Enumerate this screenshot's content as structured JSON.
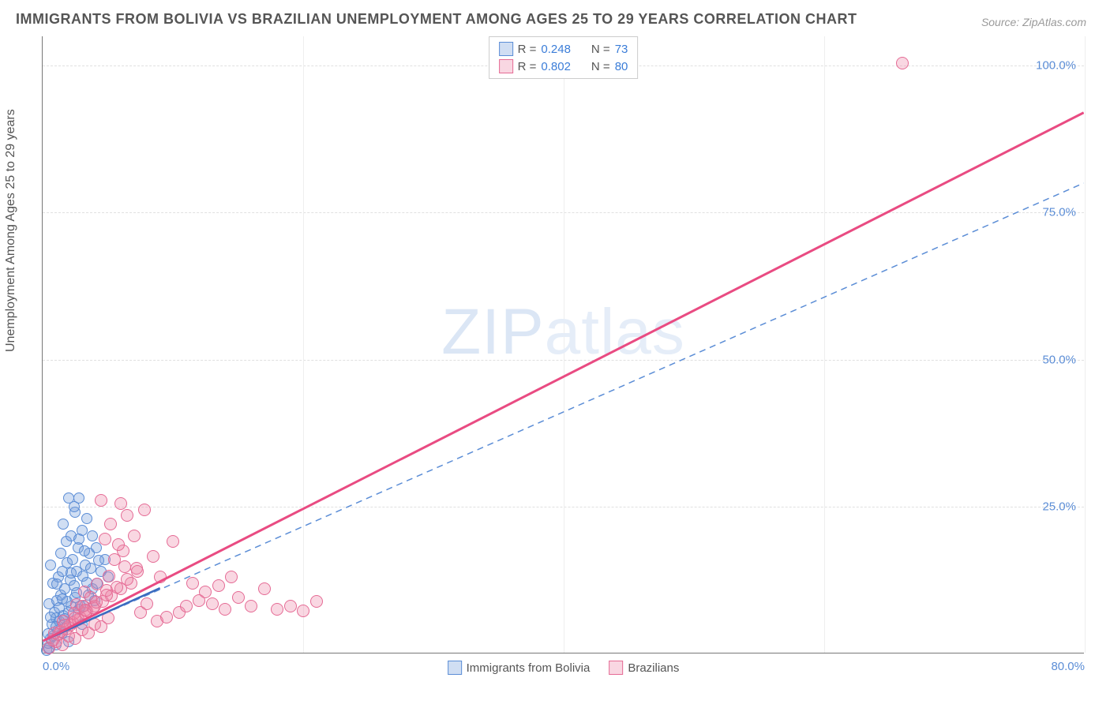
{
  "title": "IMMIGRANTS FROM BOLIVIA VS BRAZILIAN UNEMPLOYMENT AMONG AGES 25 TO 29 YEARS CORRELATION CHART",
  "source_label": "Source:",
  "source_value": "ZipAtlas.com",
  "watermark_main": "ZIP",
  "watermark_sub": "atlas",
  "y_axis_title": "Unemployment Among Ages 25 to 29 years",
  "chart": {
    "type": "scatter",
    "xlim": [
      0,
      80
    ],
    "ylim": [
      0,
      105
    ],
    "xticks": [
      {
        "v": 0,
        "label": "0.0%"
      },
      {
        "v": 80,
        "label": "80.0%"
      }
    ],
    "yticks": [
      {
        "v": 25,
        "label": "25.0%"
      },
      {
        "v": 50,
        "label": "50.0%"
      },
      {
        "v": 75,
        "label": "75.0%"
      },
      {
        "v": 100,
        "label": "100.0%"
      }
    ],
    "grid_v_positions": [
      20,
      40,
      60,
      80
    ],
    "grid_color": "#e5e5e5",
    "background_color": "#ffffff",
    "series": [
      {
        "name": "Immigrants from Bolivia",
        "fill": "rgba(120,160,220,0.35)",
        "stroke": "#5b8dd6",
        "marker_radius": 7,
        "R": "0.248",
        "N": "73",
        "regression": {
          "x1": 0,
          "y1": 2,
          "x2": 80,
          "y2": 80,
          "style": "dashed",
          "color": "#5b8dd6",
          "width": 1.5,
          "drawn_to_x": 80
        },
        "solid_segment": {
          "x1": 0,
          "y1": 2,
          "x2": 9,
          "y2": 11,
          "color": "#3b6bbf",
          "width": 2.5
        },
        "points": [
          [
            0.3,
            0.5
          ],
          [
            0.5,
            1
          ],
          [
            0.4,
            1.8
          ],
          [
            0.6,
            2.5
          ],
          [
            0.8,
            3
          ],
          [
            1,
            1.5
          ],
          [
            1.2,
            4
          ],
          [
            0.7,
            5
          ],
          [
            1.5,
            3.5
          ],
          [
            1,
            6
          ],
          [
            0.9,
            7
          ],
          [
            1.3,
            5.5
          ],
          [
            1.6,
            6.5
          ],
          [
            1.8,
            4.5
          ],
          [
            2,
            2
          ],
          [
            2,
            7
          ],
          [
            2.2,
            8
          ],
          [
            0.5,
            8.5
          ],
          [
            1.1,
            9
          ],
          [
            1.4,
            10
          ],
          [
            2.5,
            9.5
          ],
          [
            1.7,
            11
          ],
          [
            2.8,
            7.5
          ],
          [
            0.8,
            12
          ],
          [
            3,
            5
          ],
          [
            1.2,
            13
          ],
          [
            3.2,
            8
          ],
          [
            1.5,
            14
          ],
          [
            2.1,
            12.5
          ],
          [
            3.5,
            10
          ],
          [
            2.6,
            14
          ],
          [
            0.6,
            15
          ],
          [
            1.9,
            15.5
          ],
          [
            3.8,
            11
          ],
          [
            2.3,
            16
          ],
          [
            4,
            9
          ],
          [
            1.4,
            17
          ],
          [
            3.3,
            15
          ],
          [
            2.7,
            18
          ],
          [
            4.2,
            12
          ],
          [
            1.8,
            19
          ],
          [
            3.6,
            17
          ],
          [
            2.2,
            20
          ],
          [
            4.5,
            14
          ],
          [
            3,
            21
          ],
          [
            1.6,
            22
          ],
          [
            4.8,
            16
          ],
          [
            3.4,
            23
          ],
          [
            2.5,
            24
          ],
          [
            2,
            26.5
          ],
          [
            2.8,
            26.5
          ],
          [
            2.4,
            25
          ],
          [
            3.8,
            20
          ],
          [
            4.1,
            18
          ],
          [
            5,
            13
          ],
          [
            1,
            4.5
          ],
          [
            0.6,
            6.2
          ],
          [
            1.9,
            8.8
          ],
          [
            2.4,
            11.5
          ],
          [
            3.1,
            13.2
          ],
          [
            1.3,
            7.8
          ],
          [
            2.6,
            10.3
          ],
          [
            3.4,
            12.1
          ],
          [
            0.4,
            3.3
          ],
          [
            1.7,
            5.9
          ],
          [
            2.9,
            8.1
          ],
          [
            3.7,
            14.5
          ],
          [
            1.1,
            11.8
          ],
          [
            2.2,
            13.7
          ],
          [
            4.3,
            15.8
          ],
          [
            1.5,
            9.3
          ],
          [
            3.2,
            17.5
          ],
          [
            2.8,
            19.5
          ]
        ]
      },
      {
        "name": "Brazilians",
        "fill": "rgba(235,130,165,0.32)",
        "stroke": "#e56b95",
        "marker_radius": 8,
        "R": "0.802",
        "N": "80",
        "regression": {
          "x1": 0,
          "y1": 2,
          "x2": 80,
          "y2": 92,
          "style": "solid",
          "color": "#e94b82",
          "width": 3,
          "drawn_to_x": 80
        },
        "points": [
          [
            0.5,
            1
          ],
          [
            1,
            2
          ],
          [
            1.5,
            1.5
          ],
          [
            2,
            3
          ],
          [
            2.5,
            2.5
          ],
          [
            3,
            4
          ],
          [
            3.5,
            3.5
          ],
          [
            4,
            5
          ],
          [
            4.5,
            4.5
          ],
          [
            5,
            6
          ],
          [
            1.2,
            3.2
          ],
          [
            1.8,
            4.1
          ],
          [
            2.3,
            5.3
          ],
          [
            2.9,
            6.1
          ],
          [
            3.4,
            7.2
          ],
          [
            4,
            8
          ],
          [
            0.8,
            2.3
          ],
          [
            1.4,
            3.8
          ],
          [
            2.1,
            4.9
          ],
          [
            2.7,
            5.8
          ],
          [
            3.3,
            6.9
          ],
          [
            3.9,
            7.8
          ],
          [
            4.6,
            8.9
          ],
          [
            5.3,
            9.8
          ],
          [
            6,
            11
          ],
          [
            6.8,
            12
          ],
          [
            7.5,
            7
          ],
          [
            8,
            8.5
          ],
          [
            8.8,
            5.5
          ],
          [
            9.5,
            6.2
          ],
          [
            10,
            19
          ],
          [
            10.5,
            7
          ],
          [
            11,
            8
          ],
          [
            12,
            9
          ],
          [
            13,
            8.5
          ],
          [
            14,
            7.5
          ],
          [
            15,
            9.5
          ],
          [
            16,
            8
          ],
          [
            17,
            11
          ],
          [
            18,
            7.5
          ],
          [
            19,
            8
          ],
          [
            20,
            7.2
          ],
          [
            21,
            8.8
          ],
          [
            5.5,
            16
          ],
          [
            6.2,
            17.5
          ],
          [
            4.8,
            19.5
          ],
          [
            7,
            20
          ],
          [
            5.2,
            22
          ],
          [
            6.5,
            23.5
          ],
          [
            7.8,
            24.5
          ],
          [
            4.5,
            26
          ],
          [
            6,
            25.5
          ],
          [
            5.8,
            18.5
          ],
          [
            7.2,
            14.5
          ],
          [
            8.5,
            16.5
          ],
          [
            9,
            13
          ],
          [
            11.5,
            12
          ],
          [
            12.5,
            10.5
          ],
          [
            13.5,
            11.5
          ],
          [
            14.5,
            13
          ],
          [
            3.2,
            10.5
          ],
          [
            4.2,
            11.8
          ],
          [
            5.1,
            13.2
          ],
          [
            6.3,
            14.8
          ],
          [
            2.6,
            8.3
          ],
          [
            3.7,
            9.5
          ],
          [
            4.9,
            10.8
          ],
          [
            1.6,
            5.5
          ],
          [
            2.4,
            6.8
          ],
          [
            3.1,
            8.1
          ],
          [
            0.9,
            3.5
          ],
          [
            1.7,
            4.8
          ],
          [
            2.5,
            6.1
          ],
          [
            3.3,
            7.4
          ],
          [
            4.1,
            8.7
          ],
          [
            4.9,
            10
          ],
          [
            5.7,
            11.3
          ],
          [
            6.5,
            12.6
          ],
          [
            7.3,
            13.9
          ],
          [
            66,
            100.5
          ]
        ]
      }
    ]
  },
  "legend_bottom": [
    {
      "label": "Immigrants from Bolivia",
      "fill": "rgba(120,160,220,0.35)",
      "stroke": "#5b8dd6"
    },
    {
      "label": "Brazilians",
      "fill": "rgba(235,130,165,0.32)",
      "stroke": "#e56b95"
    }
  ]
}
